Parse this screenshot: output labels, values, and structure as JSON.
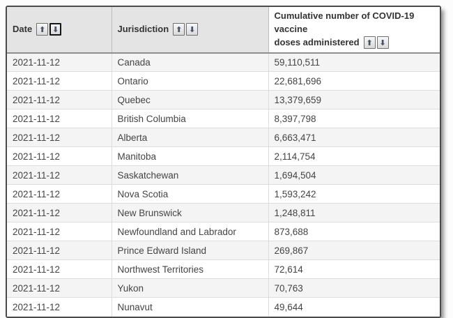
{
  "table": {
    "columns": [
      {
        "label": "Date",
        "sort": {
          "ascending_active": false,
          "descending_active": true
        }
      },
      {
        "label": "Jurisdiction",
        "sort": {
          "ascending_active": false,
          "descending_active": false
        }
      },
      {
        "label": "Cumulative number of COVID-19 vaccine doses administered",
        "label_line1": "Cumulative number of COVID-19 vaccine",
        "label_line2": "doses administered",
        "sort": {
          "ascending_active": false,
          "descending_active": false
        }
      }
    ],
    "icons": {
      "sort_ascending": "⬆",
      "sort_descending": "⬇"
    },
    "rows": [
      {
        "date": "2021-11-12",
        "jurisdiction": "Canada",
        "doses": "59,110,511"
      },
      {
        "date": "2021-11-12",
        "jurisdiction": "Ontario",
        "doses": "22,681,696"
      },
      {
        "date": "2021-11-12",
        "jurisdiction": "Quebec",
        "doses": "13,379,659"
      },
      {
        "date": "2021-11-12",
        "jurisdiction": "British Columbia",
        "doses": "8,397,798"
      },
      {
        "date": "2021-11-12",
        "jurisdiction": "Alberta",
        "doses": "6,663,471"
      },
      {
        "date": "2021-11-12",
        "jurisdiction": "Manitoba",
        "doses": "2,114,754"
      },
      {
        "date": "2021-11-12",
        "jurisdiction": "Saskatchewan",
        "doses": "1,694,504"
      },
      {
        "date": "2021-11-12",
        "jurisdiction": "Nova Scotia",
        "doses": "1,593,242"
      },
      {
        "date": "2021-11-12",
        "jurisdiction": "New Brunswick",
        "doses": "1,248,811"
      },
      {
        "date": "2021-11-12",
        "jurisdiction": "Newfoundland and Labrador",
        "doses": "873,688"
      },
      {
        "date": "2021-11-12",
        "jurisdiction": "Prince Edward Island",
        "doses": "269,867"
      },
      {
        "date": "2021-11-12",
        "jurisdiction": "Northwest Territories",
        "doses": "72,614"
      },
      {
        "date": "2021-11-12",
        "jurisdiction": "Yukon",
        "doses": "70,763"
      },
      {
        "date": "2021-11-12",
        "jurisdiction": "Nunavut",
        "doses": "49,644"
      }
    ]
  },
  "colors": {
    "page_bg": "#fcfcfc",
    "frame_border": "#4a4a4a",
    "header_bg": "#e4e4e4",
    "header_col3_bg": "#ffffff",
    "header_underline": "#8f8f8f",
    "header_text": "#333333",
    "cell_text": "#444444",
    "stripe_bg": "#f4f4f4",
    "grid_line": "#dcdcdc",
    "sort_arrow": "#44546a",
    "active_button_border": "#151515"
  }
}
